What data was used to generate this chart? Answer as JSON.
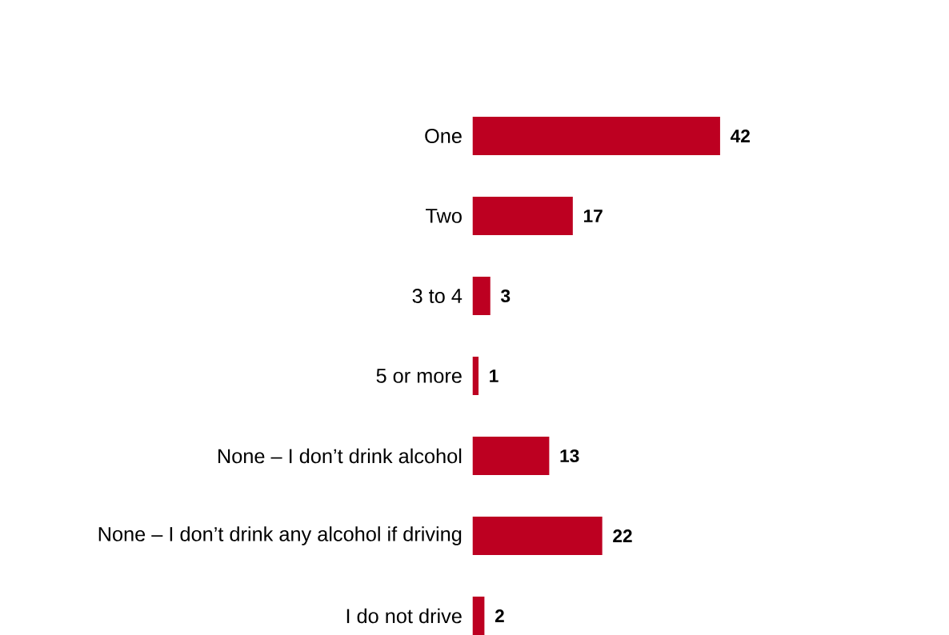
{
  "chart_data": {
    "type": "bar",
    "orientation": "horizontal",
    "data_labels": true,
    "color": "#bd0021",
    "categories": [
      "One",
      "Two",
      "3 to 4",
      "5 or more",
      "None – I don’t drink alcohol",
      "None – I don’t drink any alcohol if driving",
      "I do not drive"
    ],
    "values": [
      42,
      17,
      3,
      1,
      13,
      22,
      2
    ]
  }
}
